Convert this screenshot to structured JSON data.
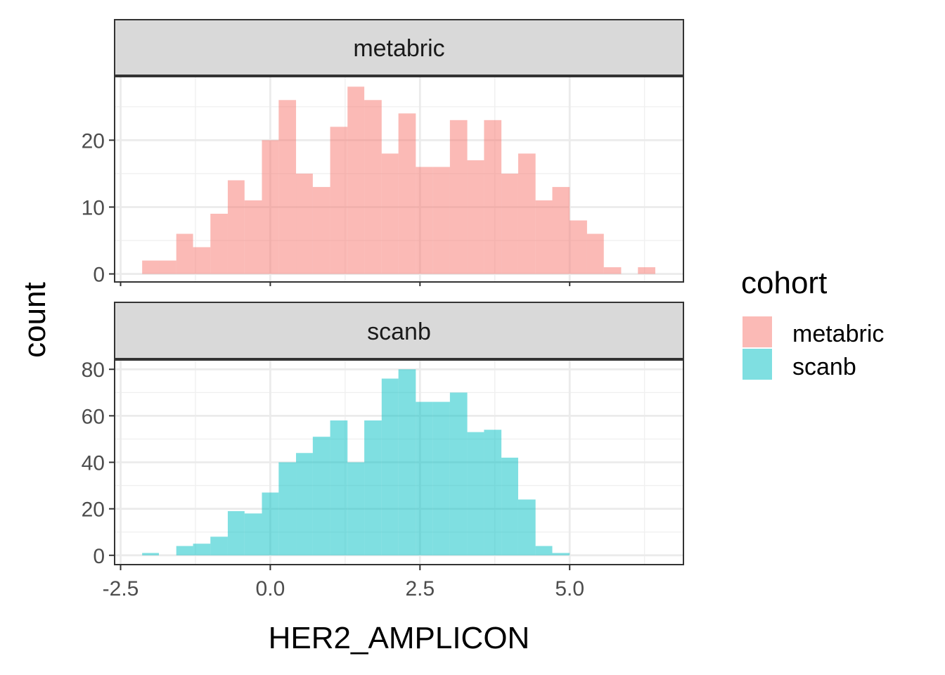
{
  "chart_data": {
    "type": "bar",
    "subtype": "faceted-histogram",
    "xlabel": "HER2_AMPLICON",
    "ylabel": "count",
    "xlim": [
      -2.6,
      6.9
    ],
    "x_ticks": [
      -2.5,
      0.0,
      2.5,
      5.0
    ],
    "x_tick_labels": [
      "-2.5",
      "0.0",
      "2.5",
      "5.0"
    ],
    "bin_width": 0.2857,
    "grid": true,
    "legend": {
      "title": "cohort",
      "position": "right",
      "entries": [
        {
          "label": "metabric",
          "color": "#F8766D"
        },
        {
          "label": "scanb",
          "color": "#00BFC4"
        }
      ]
    },
    "fill_alpha": 0.5,
    "facets": [
      {
        "strip_label": "metabric",
        "color": "#F8766D",
        "ylim": [
          -1.2,
          29.5
        ],
        "y_ticks": [
          0,
          10,
          20
        ],
        "y_tick_labels": [
          "0",
          "10",
          "20"
        ],
        "bins": [
          {
            "x0": -2.14,
            "x1": -1.86,
            "count": 2
          },
          {
            "x0": -1.86,
            "x1": -1.57,
            "count": 2
          },
          {
            "x0": -1.57,
            "x1": -1.29,
            "count": 6
          },
          {
            "x0": -1.29,
            "x1": -1.0,
            "count": 4
          },
          {
            "x0": -1.0,
            "x1": -0.71,
            "count": 9
          },
          {
            "x0": -0.71,
            "x1": -0.43,
            "count": 14
          },
          {
            "x0": -0.43,
            "x1": -0.14,
            "count": 11
          },
          {
            "x0": -0.14,
            "x1": 0.14,
            "count": 20
          },
          {
            "x0": 0.14,
            "x1": 0.43,
            "count": 26
          },
          {
            "x0": 0.43,
            "x1": 0.71,
            "count": 15
          },
          {
            "x0": 0.71,
            "x1": 1.0,
            "count": 13
          },
          {
            "x0": 1.0,
            "x1": 1.29,
            "count": 22
          },
          {
            "x0": 1.29,
            "x1": 1.57,
            "count": 28
          },
          {
            "x0": 1.57,
            "x1": 1.86,
            "count": 26
          },
          {
            "x0": 1.86,
            "x1": 2.14,
            "count": 18
          },
          {
            "x0": 2.14,
            "x1": 2.43,
            "count": 24
          },
          {
            "x0": 2.43,
            "x1": 2.71,
            "count": 16
          },
          {
            "x0": 2.71,
            "x1": 3.0,
            "count": 16
          },
          {
            "x0": 3.0,
            "x1": 3.29,
            "count": 23
          },
          {
            "x0": 3.29,
            "x1": 3.57,
            "count": 17
          },
          {
            "x0": 3.57,
            "x1": 3.86,
            "count": 23
          },
          {
            "x0": 3.86,
            "x1": 4.14,
            "count": 15
          },
          {
            "x0": 4.14,
            "x1": 4.43,
            "count": 18
          },
          {
            "x0": 4.43,
            "x1": 4.71,
            "count": 11
          },
          {
            "x0": 4.71,
            "x1": 5.0,
            "count": 13
          },
          {
            "x0": 5.0,
            "x1": 5.29,
            "count": 8
          },
          {
            "x0": 5.29,
            "x1": 5.57,
            "count": 6
          },
          {
            "x0": 5.57,
            "x1": 5.86,
            "count": 1
          },
          {
            "x0": 5.86,
            "x1": 6.14,
            "count": 0
          },
          {
            "x0": 6.14,
            "x1": 6.43,
            "count": 1
          }
        ]
      },
      {
        "strip_label": "scanb",
        "color": "#00BFC4",
        "ylim": [
          -4,
          84
        ],
        "y_ticks": [
          0,
          20,
          40,
          60,
          80
        ],
        "y_tick_labels": [
          "0",
          "20",
          "40",
          "60",
          "80"
        ],
        "bins": [
          {
            "x0": -2.14,
            "x1": -1.86,
            "count": 1
          },
          {
            "x0": -1.86,
            "x1": -1.57,
            "count": 0
          },
          {
            "x0": -1.57,
            "x1": -1.29,
            "count": 4
          },
          {
            "x0": -1.29,
            "x1": -1.0,
            "count": 5
          },
          {
            "x0": -1.0,
            "x1": -0.71,
            "count": 8
          },
          {
            "x0": -0.71,
            "x1": -0.43,
            "count": 19
          },
          {
            "x0": -0.43,
            "x1": -0.14,
            "count": 18
          },
          {
            "x0": -0.14,
            "x1": 0.14,
            "count": 27
          },
          {
            "x0": 0.14,
            "x1": 0.43,
            "count": 40
          },
          {
            "x0": 0.43,
            "x1": 0.71,
            "count": 44
          },
          {
            "x0": 0.71,
            "x1": 1.0,
            "count": 51
          },
          {
            "x0": 1.0,
            "x1": 1.29,
            "count": 58
          },
          {
            "x0": 1.29,
            "x1": 1.57,
            "count": 40
          },
          {
            "x0": 1.57,
            "x1": 1.86,
            "count": 58
          },
          {
            "x0": 1.86,
            "x1": 2.14,
            "count": 76
          },
          {
            "x0": 2.14,
            "x1": 2.43,
            "count": 80
          },
          {
            "x0": 2.43,
            "x1": 2.71,
            "count": 66
          },
          {
            "x0": 2.71,
            "x1": 3.0,
            "count": 66
          },
          {
            "x0": 3.0,
            "x1": 3.29,
            "count": 70
          },
          {
            "x0": 3.29,
            "x1": 3.57,
            "count": 53
          },
          {
            "x0": 3.57,
            "x1": 3.86,
            "count": 54
          },
          {
            "x0": 3.86,
            "x1": 4.14,
            "count": 42
          },
          {
            "x0": 4.14,
            "x1": 4.43,
            "count": 24
          },
          {
            "x0": 4.43,
            "x1": 4.71,
            "count": 4
          },
          {
            "x0": 4.71,
            "x1": 5.0,
            "count": 1
          },
          {
            "x0": 5.0,
            "x1": 5.29,
            "count": 0
          }
        ]
      }
    ]
  }
}
